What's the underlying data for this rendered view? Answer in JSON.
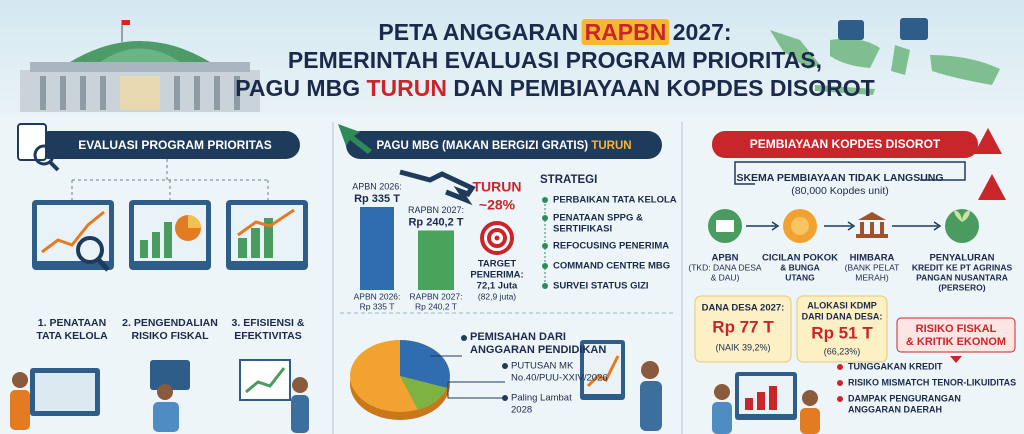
{
  "header": {
    "title_lines": [
      [
        "PETA ANGGARAN ",
        "RAPBN",
        " 2027:"
      ],
      [
        "PEMERINTAH EVALUASI PROGRAM PRIORITAS,"
      ],
      [
        "PAGU MBG ",
        "TURUN",
        " DAN PEMBIAYAAN KOPDES DISOROT"
      ]
    ]
  },
  "evaluasi": {
    "title": "EVALUASI PROGRAM PRIORITAS",
    "items": [
      [
        "1. PENATAAN",
        "TATA KELOLA"
      ],
      [
        "2. PENGENDALIAN",
        "RISIKO FISKAL"
      ],
      [
        "3. EFISIENSI &",
        "EFEKTIVITAS"
      ]
    ]
  },
  "mbg": {
    "title": [
      "PAGU MBG (MAKAN BERGIZI GRATIS) ",
      "TURUN"
    ],
    "bars": {
      "labels": [
        [
          "APBN 2026:",
          "Rp 335 T"
        ],
        [
          "RAPBN 2027:",
          "Rp 240,2 T"
        ]
      ],
      "values": [
        335,
        240.2
      ],
      "bottom_labels": [
        [
          "APBN 2026:",
          "Rp 335 T"
        ],
        [
          "RAPBN 2027:",
          "Rp 240,2 T"
        ]
      ]
    },
    "decline": [
      "TURUN",
      "~28%"
    ],
    "target": [
      "TARGET",
      "PENERIMA:",
      "72,1 Juta",
      "(82,9 juta)"
    ],
    "strategy_title": "STRATEGI",
    "strategy": [
      [
        "PERBAIKAN TATA KELOLA"
      ],
      [
        "PENATAAN SPPG &",
        "SERTIFIKASI"
      ],
      [
        "REFOCUSING PENERIMA"
      ],
      [
        "COMMAND CENTRE MBG"
      ],
      [
        "SURVEI STATUS GIZI"
      ]
    ],
    "separation": [
      "PEMISAHAN DARI",
      "ANGGARAN PENDIDIKAN"
    ],
    "ruling": [
      "PUTUSAN MK",
      "No.40/PUU-XXIV/2026"
    ],
    "deadline": [
      "Paling Lambat",
      "2028"
    ]
  },
  "kopdes": {
    "title": "PEMBIAYAAN KOPDES DISOROT",
    "scheme": [
      "SKEMA PEMBIAYAAN TIDAK LANGSUNG",
      "(80,000 Kopdes unit)"
    ],
    "flow": [
      [
        "APBN",
        "(TKD: DANA DESA",
        "& DAU)"
      ],
      [
        "CICILAN POKOK",
        "& BUNGA",
        "UTANG"
      ],
      [
        "HIMBARA",
        "(BANK PELAT",
        "MERAH)"
      ],
      [
        "PENYALURAN",
        "KREDIT KE PT AGRINAS",
        "PANGAN NUSANTARA",
        "(PERSERO)"
      ]
    ],
    "dana_desa": [
      "DANA DESA 2027:",
      "Rp 77 T",
      "(NAIK 39,2%)"
    ],
    "kdmp": [
      "ALOKASI KDMP",
      "DARI DANA DESA:",
      "Rp 51 T",
      "(66,23%)"
    ],
    "risk_title": [
      "RISIKO FISKAL",
      "& KRITIK EKONOM"
    ],
    "risks": [
      [
        "TUNGGAKAN KREDIT"
      ],
      [
        "RISIKO MISMATCH TENOR-LIKUIDITAS"
      ],
      [
        "DAMPAK PENGURANGAN",
        "ANGGARAN DAERAH"
      ]
    ]
  }
}
